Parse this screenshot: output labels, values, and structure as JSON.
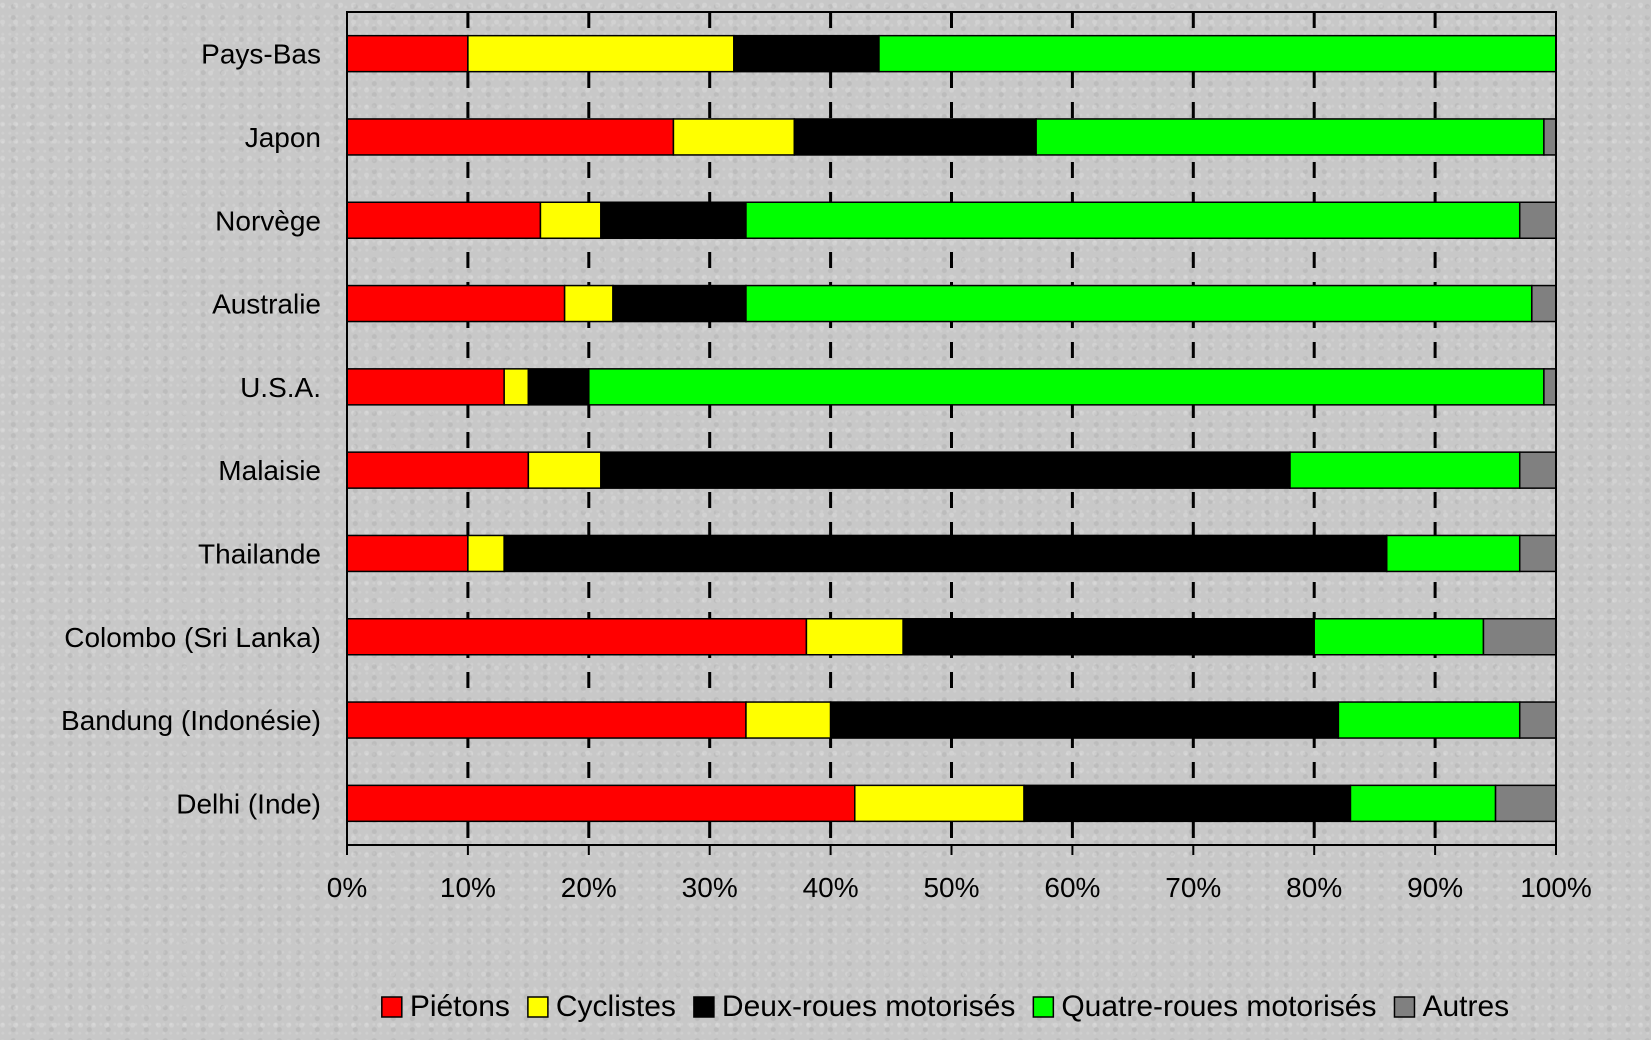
{
  "chart_data": {
    "type": "bar",
    "orientation": "horizontal",
    "stacked": "percent",
    "title": "",
    "xlabel": "",
    "ylabel": "",
    "xlim": [
      0,
      100
    ],
    "x_ticks": [
      "0%",
      "10%",
      "20%",
      "30%",
      "40%",
      "50%",
      "60%",
      "70%",
      "80%",
      "90%",
      "100%"
    ],
    "grid": "vertical-dashed",
    "legend_position": "bottom",
    "categories": [
      "Pays-Bas",
      "Japon",
      "Norvège",
      "Australie",
      "U.S.A.",
      "Malaisie",
      "Thailande",
      "Colombo (Sri Lanka)",
      "Bandung (Indonésie)",
      "Delhi (Inde)"
    ],
    "series": [
      {
        "name": "Piétons",
        "color": "#ff0000",
        "values": [
          10,
          27,
          16,
          18,
          13,
          15,
          10,
          38,
          33,
          42
        ]
      },
      {
        "name": "Cyclistes",
        "color": "#ffff00",
        "values": [
          22,
          10,
          5,
          4,
          2,
          6,
          3,
          8,
          7,
          14
        ]
      },
      {
        "name": "Deux-roues motorisés",
        "color": "#000000",
        "values": [
          12,
          20,
          12,
          11,
          5,
          57,
          73,
          34,
          42,
          27
        ]
      },
      {
        "name": "Quatre-roues motorisés",
        "color": "#00ff00",
        "values": [
          56,
          42,
          64,
          65,
          79,
          19,
          11,
          14,
          15,
          12
        ]
      },
      {
        "name": "Autres",
        "color": "#808080",
        "values": [
          0,
          1,
          3,
          2,
          1,
          3,
          3,
          6,
          3,
          5
        ]
      }
    ]
  }
}
